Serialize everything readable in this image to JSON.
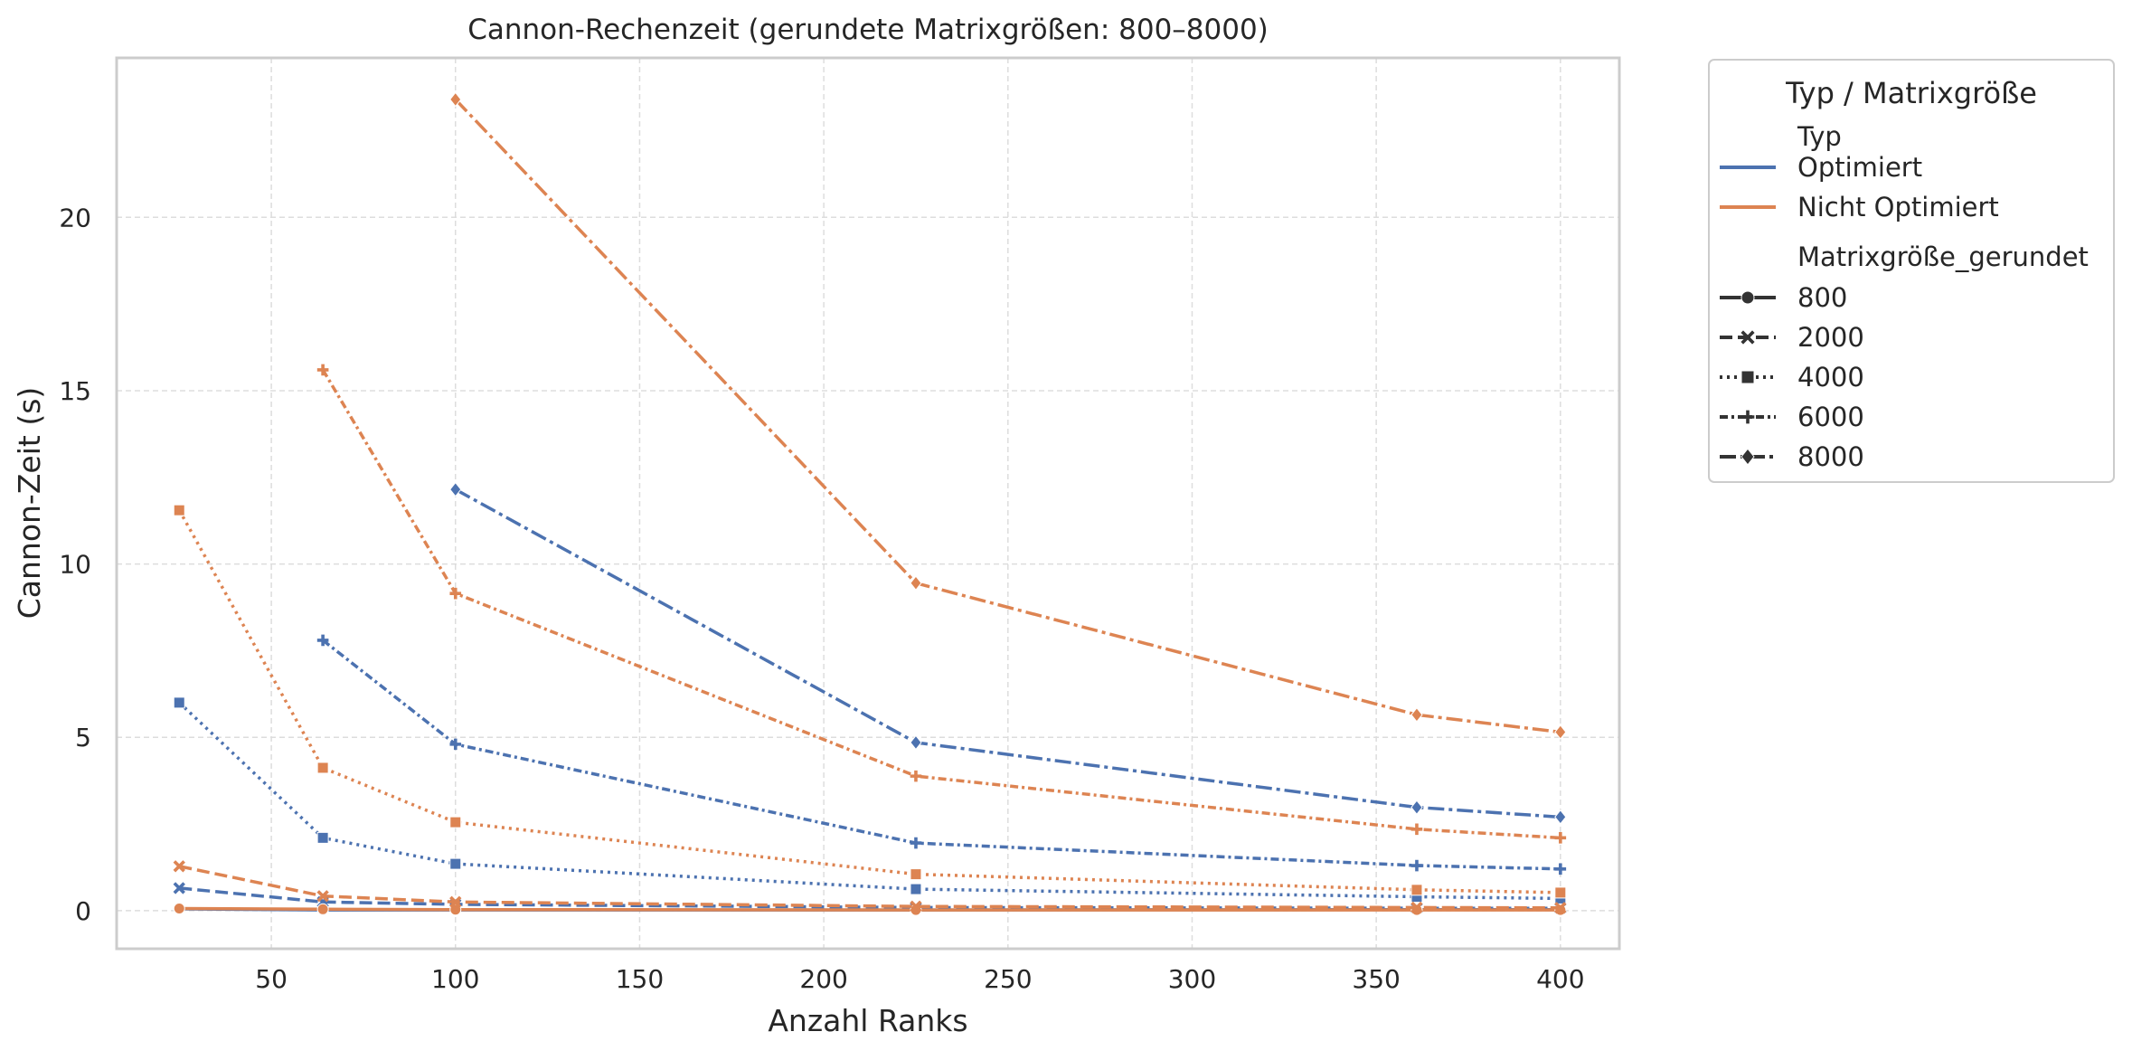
{
  "chart_data": {
    "type": "line",
    "title": "Cannon-Rechenzeit (gerundete Matrixgrößen: 800–8000)",
    "xlabel": "Anzahl Ranks",
    "ylabel": "Cannon-Zeit (s)",
    "xlim": [
      8,
      416
    ],
    "ylim": [
      -1.1,
      24.6
    ],
    "x_ticks": [
      50,
      100,
      150,
      200,
      250,
      300,
      350,
      400
    ],
    "y_ticks": [
      0,
      5,
      10,
      15,
      20
    ],
    "grid": true,
    "legend": {
      "title": "Typ / Matrixgröße",
      "placement": "outside-right-top",
      "type_header": "Typ",
      "size_header": "Matrixgröße_gerundet",
      "types": [
        {
          "label": "Optimiert",
          "color": "#4c72b0"
        },
        {
          "label": "Nicht Optimiert",
          "color": "#dd8452"
        }
      ],
      "sizes": [
        {
          "label": "800",
          "marker": "circle",
          "dash": "solid"
        },
        {
          "label": "2000",
          "marker": "x",
          "dash": "dashed"
        },
        {
          "label": "4000",
          "marker": "square",
          "dash": "dotted"
        },
        {
          "label": "6000",
          "marker": "plus",
          "dash": "densedash"
        },
        {
          "label": "8000",
          "marker": "diamond",
          "dash": "dashdot"
        }
      ]
    },
    "series": [
      {
        "type": "Optimiert",
        "size": "800",
        "x": [
          25,
          64,
          100,
          225,
          361,
          400
        ],
        "y": [
          0.05,
          0.02,
          0.02,
          0.02,
          0.03,
          0.03
        ]
      },
      {
        "type": "Optimiert",
        "size": "2000",
        "x": [
          25,
          64,
          100,
          225,
          361,
          400
        ],
        "y": [
          0.65,
          0.25,
          0.18,
          0.09,
          0.07,
          0.07
        ]
      },
      {
        "type": "Optimiert",
        "size": "4000",
        "x": [
          25,
          64,
          100,
          225,
          361,
          400
        ],
        "y": [
          6.0,
          2.1,
          1.35,
          0.62,
          0.4,
          0.35
        ]
      },
      {
        "type": "Optimiert",
        "size": "6000",
        "x": [
          64,
          100,
          225,
          361,
          400
        ],
        "y": [
          7.8,
          4.8,
          1.95,
          1.3,
          1.2
        ]
      },
      {
        "type": "Optimiert",
        "size": "8000",
        "x": [
          100,
          225,
          361,
          400
        ],
        "y": [
          12.15,
          4.85,
          2.98,
          2.7
        ]
      },
      {
        "type": "Nicht Optimiert",
        "size": "800",
        "x": [
          25,
          64,
          100,
          225,
          361,
          400
        ],
        "y": [
          0.06,
          0.04,
          0.03,
          0.02,
          0.02,
          0.02
        ]
      },
      {
        "type": "Nicht Optimiert",
        "size": "2000",
        "x": [
          25,
          64,
          100,
          225,
          361,
          400
        ],
        "y": [
          1.28,
          0.42,
          0.25,
          0.12,
          0.09,
          0.08
        ]
      },
      {
        "type": "Nicht Optimiert",
        "size": "4000",
        "x": [
          25,
          64,
          100,
          225,
          361,
          400
        ],
        "y": [
          11.55,
          4.12,
          2.55,
          1.05,
          0.6,
          0.52
        ]
      },
      {
        "type": "Nicht Optimiert",
        "size": "6000",
        "x": [
          64,
          100,
          225,
          361,
          400
        ],
        "y": [
          15.6,
          9.15,
          3.88,
          2.35,
          2.1
        ]
      },
      {
        "type": "Nicht Optimiert",
        "size": "8000",
        "x": [
          100,
          225,
          361,
          400
        ],
        "y": [
          23.4,
          9.45,
          5.65,
          5.15
        ]
      }
    ]
  }
}
